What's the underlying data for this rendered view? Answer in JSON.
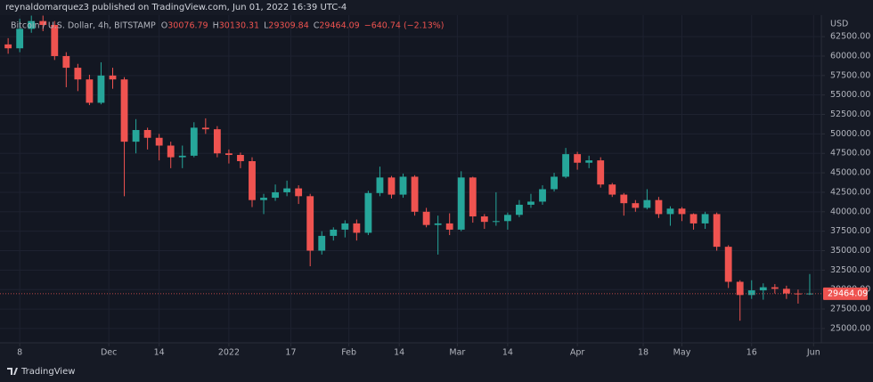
{
  "header": {
    "publisher": "reynaldomarquez3 published on TradingView.com, Jun 01, 2022 16:39 UTC-4"
  },
  "footer": {
    "brand": "TradingView"
  },
  "chart_data": {
    "type": "candlestick",
    "legend": {
      "symbol": "Bitcoin / U.S. Dollar, 4h, BITSTAMP",
      "ohlc": [
        {
          "label": "O",
          "value": 30076.79
        },
        {
          "label": "H",
          "value": 30130.31
        },
        {
          "label": "L",
          "value": 29309.84
        },
        {
          "label": "C",
          "value": 29464.09
        }
      ],
      "change": "−640.74 (−2.13%)"
    },
    "y_axis_label": "USD",
    "last_price": 29464.09,
    "up_color": "#26a69a",
    "down_color": "#ef5350",
    "grid": true,
    "open": [
      61500,
      61000,
      63500,
      64500,
      64000,
      60000,
      58500,
      57000,
      54000,
      57500,
      57000,
      49000,
      50500,
      49500,
      48500,
      47000,
      47200,
      50800,
      50600,
      47500,
      47300,
      46500,
      41500,
      41800,
      42500,
      43000,
      42000,
      35000,
      36900,
      37700,
      38500,
      37300,
      42400,
      44400,
      42200,
      44500,
      40000,
      38300,
      38500,
      37700,
      44400,
      39400,
      38700,
      38800,
      39600,
      40900,
      41300,
      42900,
      44500,
      47400,
      46300,
      46600,
      43500,
      42200,
      41100,
      40500,
      41500,
      39700,
      40400,
      39700,
      38500,
      39700,
      35500,
      31000,
      29300,
      29900,
      30300,
      30100,
      29500,
      29400
    ],
    "high": [
      62300,
      64800,
      65200,
      65200,
      64500,
      60500,
      59000,
      57600,
      59200,
      58500,
      57300,
      51900,
      50800,
      50000,
      49000,
      48500,
      51500,
      52000,
      51000,
      48000,
      47600,
      47000,
      42300,
      43500,
      44000,
      43400,
      42300,
      37500,
      38000,
      38900,
      39000,
      42700,
      45800,
      44600,
      44900,
      44700,
      40500,
      39500,
      39800,
      45200,
      44500,
      39700,
      42500,
      39900,
      41500,
      42300,
      43400,
      45000,
      48200,
      47700,
      47200,
      47000,
      43700,
      42400,
      41500,
      42900,
      41900,
      40700,
      40600,
      39800,
      40000,
      39900,
      35700,
      31200,
      31200,
      30800,
      30700,
      30500,
      30000,
      32000
    ],
    "low": [
      60300,
      60500,
      63000,
      63200,
      59500,
      56000,
      55500,
      53700,
      53800,
      55800,
      42000,
      47500,
      48000,
      46600,
      45600,
      45600,
      47000,
      50000,
      47000,
      46200,
      45600,
      40600,
      39700,
      41400,
      42000,
      41000,
      33000,
      34500,
      36300,
      36700,
      36300,
      37000,
      42000,
      41700,
      41800,
      39500,
      38000,
      34500,
      37000,
      37500,
      38600,
      37800,
      38200,
      37700,
      39300,
      40500,
      40900,
      42600,
      44300,
      45400,
      45600,
      43100,
      41900,
      39500,
      40000,
      40300,
      39200,
      38200,
      38800,
      37700,
      37800,
      35000,
      30200,
      26000,
      28800,
      28700,
      29500,
      28800,
      28200,
      29300
    ],
    "close": [
      61000,
      63500,
      64500,
      64000,
      60000,
      58500,
      57000,
      54000,
      57500,
      57000,
      49000,
      50500,
      49500,
      48500,
      47000,
      47200,
      50800,
      50600,
      47500,
      47300,
      46500,
      41500,
      41800,
      42500,
      43000,
      42000,
      35000,
      36900,
      37700,
      38500,
      37300,
      42400,
      44400,
      42200,
      44500,
      40000,
      38300,
      38500,
      37700,
      44400,
      39400,
      38700,
      38800,
      39600,
      40900,
      41300,
      42900,
      44500,
      47400,
      46300,
      46600,
      43500,
      42200,
      41100,
      40500,
      41500,
      39700,
      40400,
      39700,
      38500,
      39700,
      35500,
      31000,
      29300,
      29900,
      30300,
      30100,
      29500,
      29400,
      29500
    ],
    "xlim": [
      -0.7,
      70
    ],
    "xticks": [
      {
        "value": 1,
        "label": "8"
      },
      {
        "value": 8.667,
        "label": "Dec"
      },
      {
        "value": 13,
        "label": "14"
      },
      {
        "value": 19,
        "label": "2022"
      },
      {
        "value": 24.333,
        "label": "17"
      },
      {
        "value": 29.333,
        "label": "Feb"
      },
      {
        "value": 33.667,
        "label": "14"
      },
      {
        "value": 38.667,
        "label": "Mar"
      },
      {
        "value": 43,
        "label": "14"
      },
      {
        "value": 49,
        "label": "Apr"
      },
      {
        "value": 54.667,
        "label": "18"
      },
      {
        "value": 58,
        "label": "May"
      },
      {
        "value": 64,
        "label": "16"
      },
      {
        "value": 69.333,
        "label": "Jun"
      }
    ],
    "ylim": [
      23160,
      65260
    ],
    "yticks": [
      {
        "value": 25000,
        "label": "25000.00"
      },
      {
        "value": 27500,
        "label": "27500.00"
      },
      {
        "value": 30000,
        "label": "30000.00"
      },
      {
        "value": 32500,
        "label": "32500.00"
      },
      {
        "value": 35000,
        "label": "35000.00"
      },
      {
        "value": 37500,
        "label": "37500.00"
      },
      {
        "value": 40000,
        "label": "40000.00"
      },
      {
        "value": 42500,
        "label": "42500.00"
      },
      {
        "value": 45000,
        "label": "45000.00"
      },
      {
        "value": 47500,
        "label": "47500.00"
      },
      {
        "value": 50000,
        "label": "50000.00"
      },
      {
        "value": 52500,
        "label": "52500.00"
      },
      {
        "value": 55000,
        "label": "55000.00"
      },
      {
        "value": 57500,
        "label": "57500.00"
      },
      {
        "value": 60000,
        "label": "60000.00"
      },
      {
        "value": 62500,
        "label": "62500.00"
      }
    ]
  }
}
